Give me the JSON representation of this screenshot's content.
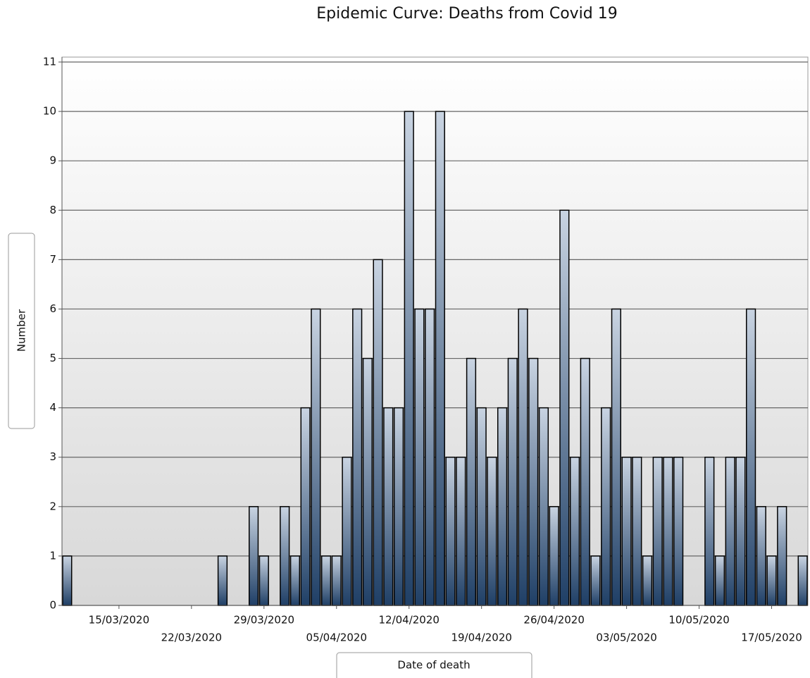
{
  "chart_data": {
    "type": "bar",
    "title": "Epidemic Curve: Deaths from Covid 19",
    "x_label": "Date of death",
    "y_label": "Number",
    "categories": [
      null,
      null,
      null,
      null,
      null,
      "15/03/2020",
      null,
      null,
      null,
      null,
      null,
      null,
      "22/03/2020",
      null,
      null,
      null,
      null,
      null,
      null,
      "29/03/2020",
      null,
      null,
      null,
      null,
      null,
      null,
      "05/04/2020",
      null,
      null,
      null,
      null,
      null,
      null,
      "12/04/2020",
      null,
      null,
      null,
      null,
      null,
      null,
      "19/04/2020",
      null,
      null,
      null,
      null,
      null,
      null,
      "26/04/2020",
      null,
      null,
      null,
      null,
      null,
      null,
      "03/05/2020",
      null,
      null,
      null,
      null,
      null,
      null,
      "10/05/2020",
      null,
      null,
      null,
      null,
      null,
      null,
      "17/05/2020",
      null,
      null,
      null
    ],
    "values": [
      1,
      0,
      0,
      0,
      0,
      0,
      0,
      0,
      0,
      0,
      0,
      0,
      0,
      0,
      0,
      1,
      0,
      0,
      2,
      1,
      0,
      2,
      1,
      4,
      6,
      1,
      1,
      3,
      6,
      5,
      7,
      4,
      4,
      10,
      6,
      6,
      10,
      3,
      3,
      5,
      4,
      3,
      4,
      5,
      6,
      5,
      4,
      2,
      8,
      3,
      5,
      1,
      4,
      6,
      3,
      3,
      1,
      3,
      3,
      3,
      0,
      0,
      3,
      1,
      3,
      3,
      6,
      2,
      1,
      2,
      0,
      1
    ],
    "color": "#1f3f66",
    "ylim": [
      0,
      11
    ],
    "yticks": [
      0,
      1,
      2,
      3,
      4,
      5,
      6,
      7,
      8,
      9,
      10,
      11
    ],
    "grid": true
  }
}
